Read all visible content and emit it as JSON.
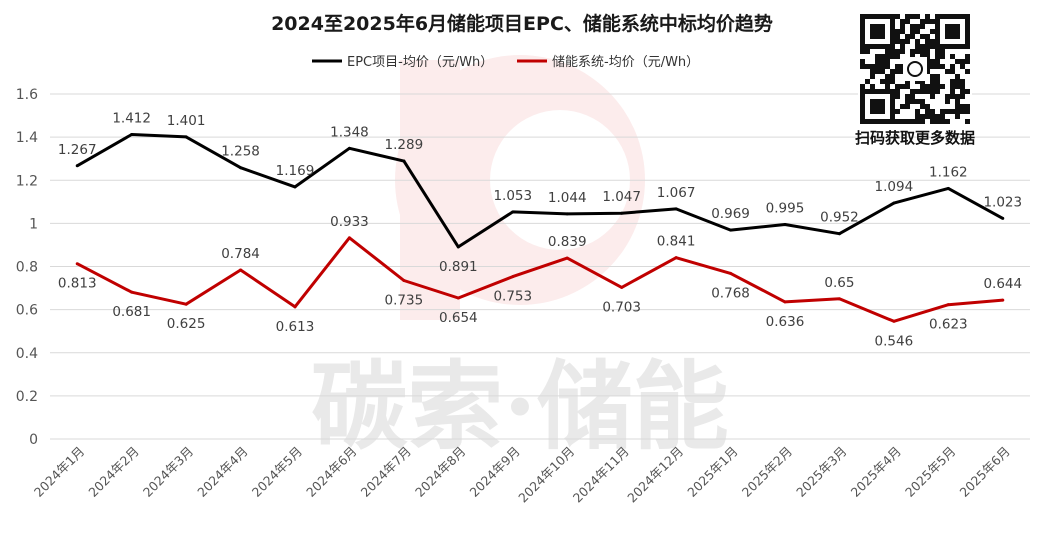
{
  "title": "2024至2025年6月储能项目EPC、储能系统中标均价趋势",
  "qr_caption": "扫码获取更多数据",
  "watermark": "碳索·储能",
  "colors": {
    "epc": "#000000",
    "system": "#c00000",
    "grid": "#d9d9d9"
  },
  "chart_data": {
    "type": "line",
    "title": "2024至2025年6月储能项目EPC、储能系统中标均价趋势",
    "categories": [
      "2024年1月",
      "2024年2月",
      "2024年3月",
      "2024年4月",
      "2024年5月",
      "2024年6月",
      "2024年7月",
      "2024年8月",
      "2024年9月",
      "2024年10月",
      "2024年11月",
      "2024年12月",
      "2025年1月",
      "2025年2月",
      "2025年3月",
      "2025年4月",
      "2025年5月",
      "2025年6月"
    ],
    "series": [
      {
        "name": "EPC项目-均价（元/Wh）",
        "values": [
          1.267,
          1.412,
          1.401,
          1.258,
          1.169,
          1.348,
          1.289,
          0.891,
          1.053,
          1.044,
          1.047,
          1.067,
          0.969,
          0.995,
          0.952,
          1.094,
          1.162,
          1.023
        ],
        "labels": [
          "1.267",
          "1.412",
          "1.401",
          "1.258",
          "1.169",
          "1.348",
          "1.289",
          "0.891",
          "1.053",
          "1.044",
          "1.047",
          "1.067",
          "0.969",
          "0.995",
          "0.952",
          "1.094",
          "1.162",
          "1.023"
        ]
      },
      {
        "name": "储能系统-均价（元/Wh）",
        "values": [
          0.813,
          0.681,
          0.625,
          0.784,
          0.613,
          0.933,
          0.735,
          0.654,
          0.753,
          0.839,
          0.703,
          0.841,
          0.768,
          0.636,
          0.65,
          0.546,
          0.623,
          0.644
        ],
        "labels": [
          "0.813",
          "0.681",
          "0.625",
          "0.784",
          "0.613",
          "0.933",
          "0.735",
          "0.654",
          "0.753",
          "0.839",
          "0.703",
          "0.841",
          "0.768",
          "0.636",
          "0.65",
          "0.546",
          "0.623",
          "0.644"
        ]
      }
    ],
    "yticks": [
      "0",
      "0.2",
      "0.4",
      "0.6",
      "0.8",
      "1",
      "1.2",
      "1.4",
      "1.6"
    ],
    "ylim": [
      0,
      1.6
    ],
    "grid": true,
    "legend_position": "top"
  }
}
